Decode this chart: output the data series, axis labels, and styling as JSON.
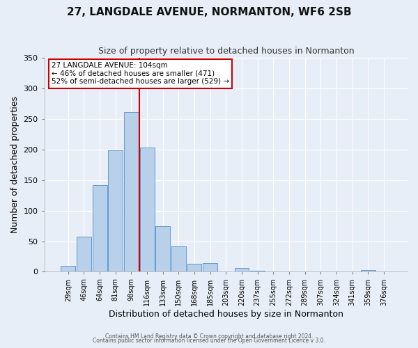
{
  "title": "27, LANGDALE AVENUE, NORMANTON, WF6 2SB",
  "subtitle": "Size of property relative to detached houses in Normanton",
  "xlabel": "Distribution of detached houses by size in Normanton",
  "ylabel": "Number of detached properties",
  "bar_labels": [
    "29sqm",
    "46sqm",
    "64sqm",
    "81sqm",
    "98sqm",
    "116sqm",
    "133sqm",
    "150sqm",
    "168sqm",
    "185sqm",
    "203sqm",
    "220sqm",
    "237sqm",
    "255sqm",
    "272sqm",
    "289sqm",
    "307sqm",
    "324sqm",
    "341sqm",
    "359sqm",
    "376sqm"
  ],
  "bar_values": [
    10,
    57,
    142,
    199,
    261,
    203,
    75,
    41,
    13,
    14,
    0,
    6,
    2,
    0,
    0,
    0,
    0,
    0,
    0,
    3,
    0
  ],
  "bar_color": "#b8d0ea",
  "bar_edge_color": "#6699cc",
  "ylim": [
    0,
    350
  ],
  "yticks": [
    0,
    50,
    100,
    150,
    200,
    250,
    300,
    350
  ],
  "vline_x_index": 4.5,
  "vline_color": "#cc0000",
  "annotation_title": "27 LANGDALE AVENUE: 104sqm",
  "annotation_line1": "← 46% of detached houses are smaller (471)",
  "annotation_line2": "52% of semi-detached houses are larger (529) →",
  "annotation_box_color": "#ffffff",
  "annotation_box_edge": "#cc0000",
  "footer1": "Contains HM Land Registry data © Crown copyright and database right 2024.",
  "footer2": "Contains public sector information licensed under the Open Government Licence v 3.0.",
  "background_color": "#e8eef8",
  "plot_bg_color": "#e8eef8",
  "grid_color": "#ffffff",
  "title_fontsize": 11,
  "subtitle_fontsize": 9
}
